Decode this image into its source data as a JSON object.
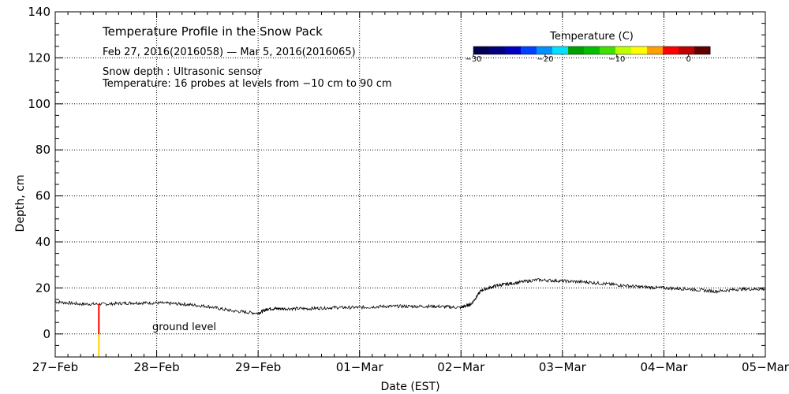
{
  "chart_data": {
    "type": "line",
    "title": "Temperature Profile in the Snow Pack",
    "subtitle": "Feb 27, 2016(2016058) — Mar  5, 2016(2016065)",
    "annotations": [
      "Snow depth : Ultrasonic sensor",
      "Temperature: 16 probes at levels from −10 cm to 90 cm"
    ],
    "xlabel": "Date (EST)",
    "ylabel": "Depth, cm",
    "x_tick_labels": [
      "27−Feb",
      "28−Feb",
      "29−Feb",
      "01−Mar",
      "02−Mar",
      "03−Mar",
      "04−Mar",
      "05−Mar"
    ],
    "xlim": [
      0,
      7
    ],
    "ylim": [
      -10,
      140
    ],
    "y_ticks": [
      0,
      20,
      40,
      60,
      80,
      100,
      120,
      140
    ],
    "grid": true,
    "ground_label": "ground level",
    "series": [
      {
        "x": [
          0,
          0.25,
          0.5,
          0.75,
          1.0,
          1.25,
          1.5,
          1.75,
          2.0,
          2.1,
          2.25,
          2.5,
          2.75,
          3.0,
          3.25,
          3.5,
          3.75,
          4.0,
          4.1,
          4.2,
          4.35,
          4.5,
          4.75,
          5.0,
          5.25,
          5.5,
          5.75,
          6.0,
          6.25,
          6.5,
          6.75,
          7.0
        ],
        "y": [
          14,
          13,
          13,
          13.5,
          13.5,
          13,
          12,
          10,
          9,
          11,
          11,
          11,
          11.5,
          11.5,
          12,
          12,
          12,
          11.5,
          13,
          19,
          21,
          22,
          23.5,
          23,
          22.5,
          21.5,
          20.5,
          20,
          19.5,
          18.5,
          19.5,
          19.5
        ]
      }
    ],
    "temperature_bar": {
      "x": 0.43,
      "segments": [
        {
          "from": -10,
          "to": 0,
          "color": "#ffd200"
        },
        {
          "from": 0,
          "to": 13,
          "color": "#ff0000"
        }
      ]
    },
    "colorbar": {
      "title": "Temperature (C)",
      "tick_labels": [
        "−30",
        "−20",
        "−10",
        "0"
      ],
      "tick_values": [
        -30,
        -20,
        -10,
        0
      ],
      "range": [
        -30,
        3
      ],
      "colors": [
        "#000050",
        "#000080",
        "#0000c0",
        "#0040ff",
        "#0090ff",
        "#00e0ff",
        "#00a000",
        "#00c000",
        "#40e000",
        "#c0ff00",
        "#ffff00",
        "#ffa000",
        "#ff0000",
        "#c00000",
        "#600000"
      ]
    }
  }
}
